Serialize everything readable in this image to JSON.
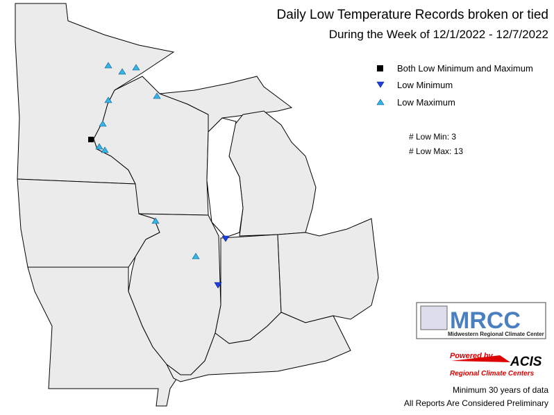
{
  "header": {
    "title": "Daily Low Temperature Records broken or tied",
    "subtitle": "During the Week of 12/1/2022 - 12/7/2022"
  },
  "legend": [
    {
      "label": "Both Low Minimum and Maximum"
    },
    {
      "label": "Low Minimum"
    },
    {
      "label": "Low Maximum"
    }
  ],
  "counts": [
    "# Low Min: 3",
    "# Low Max: 13"
  ],
  "logo": {
    "name": "MRCC",
    "subtitle": "Midwestern Regional Climate Center"
  },
  "acis": {
    "powered": "Powered by",
    "name": "ACIS",
    "subtitle": "Regional Climate Centers"
  },
  "footer": [
    "Minimum 30 years of data",
    "All Reports Are Considered Preliminary"
  ]
}
